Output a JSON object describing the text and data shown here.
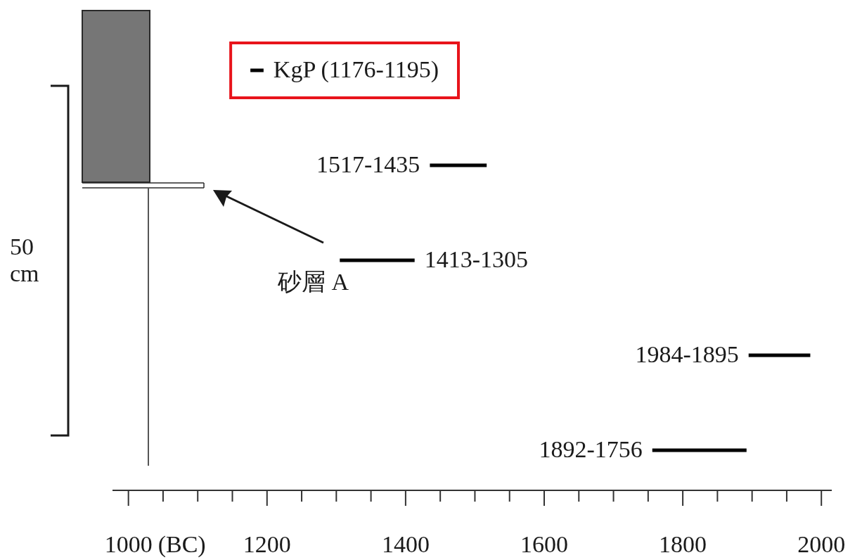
{
  "chart_data": {
    "type": "bar",
    "orientation": "horizontal",
    "xlim": [
      977,
      2015
    ],
    "xlabel": "(BC)",
    "xticks": [
      1000,
      {
        "value": 1050,
        "label": null
      },
      {
        "value": 1100,
        "label": null
      },
      {
        "value": 1150,
        "label": null
      },
      1200,
      {
        "value": 1250,
        "label": null
      },
      {
        "value": 1300,
        "label": null
      },
      {
        "value": 1350,
        "label": null
      },
      1400,
      {
        "value": 1450,
        "label": null
      },
      {
        "value": 1500,
        "label": null
      },
      {
        "value": 1550,
        "label": null
      },
      1600,
      {
        "value": 1650,
        "label": null
      },
      {
        "value": 1700,
        "label": null
      },
      {
        "value": 1750,
        "label": null
      },
      1800,
      {
        "value": 1850,
        "label": null
      },
      {
        "value": 1900,
        "label": null
      },
      {
        "value": 1950,
        "label": null
      },
      2000
    ],
    "categories": [
      "KgP (1176-1195)",
      "1517-1435",
      "1413-1305",
      "1984-1895",
      "1892-1756"
    ],
    "base": [
      1176,
      1435,
      1305,
      1895,
      1756
    ],
    "values": [
      19,
      82,
      108,
      89,
      136
    ],
    "color": "#000000",
    "annotations": [
      "砂層 A",
      "50 cm"
    ]
  }
}
